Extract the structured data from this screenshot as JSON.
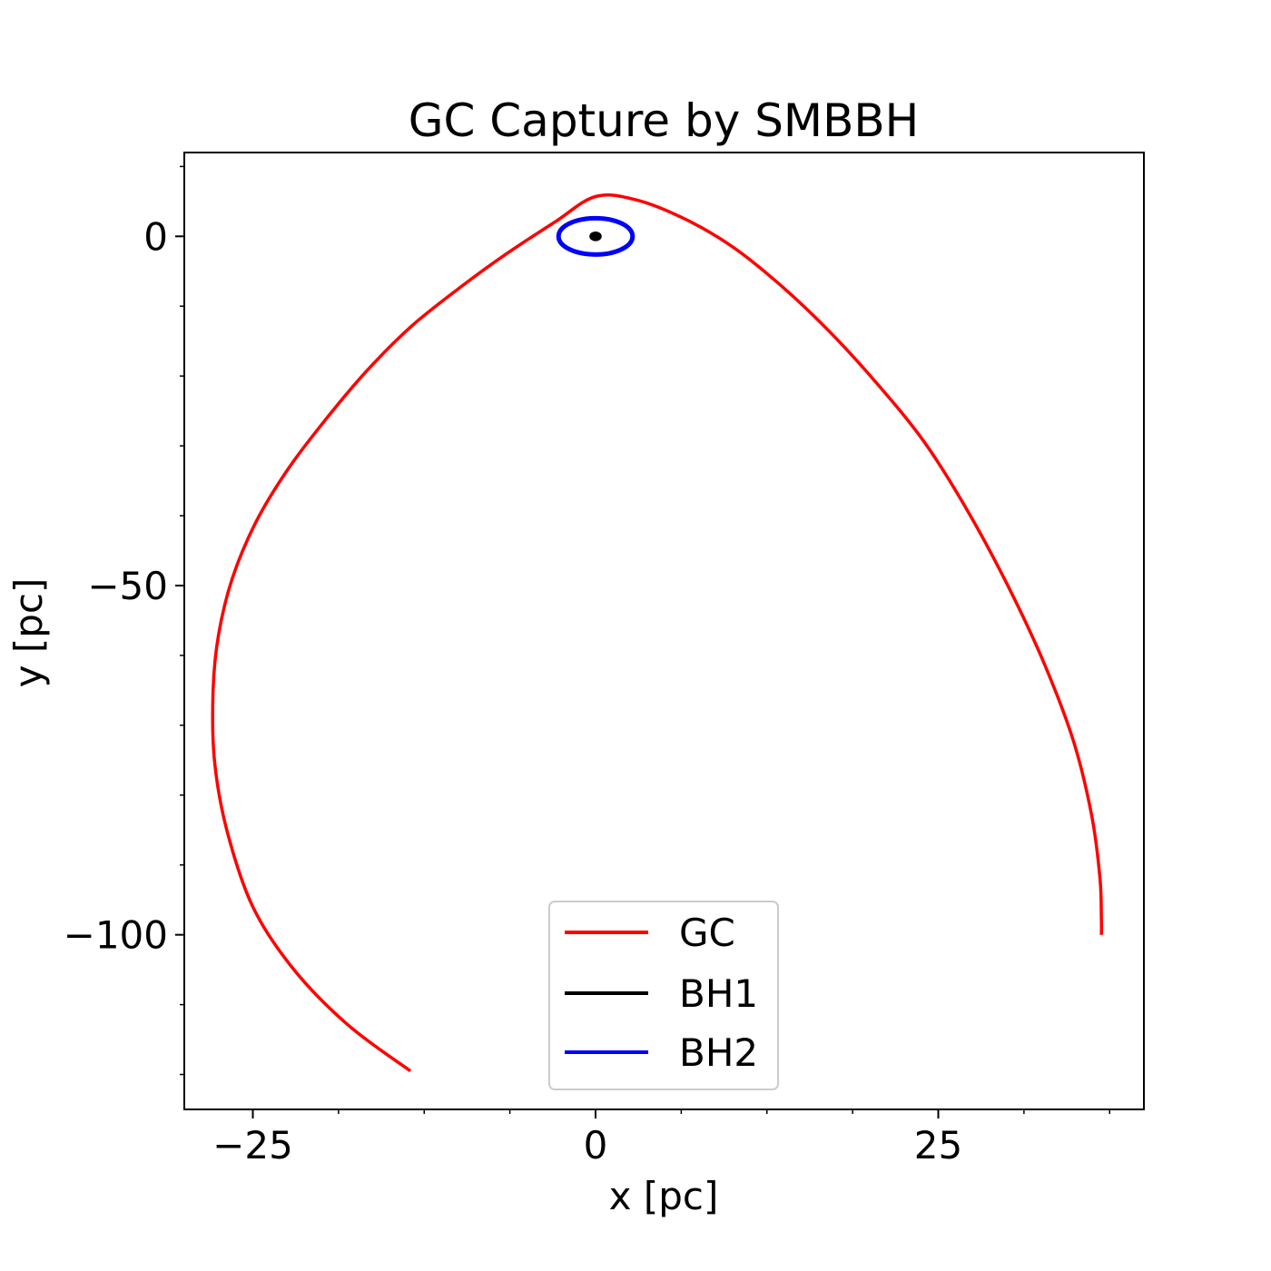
{
  "chart_data": {
    "type": "line",
    "title": "GC Capture by SMBBH",
    "xlabel": "x [pc]",
    "ylabel": "y [pc]",
    "xlim": [
      -30,
      40
    ],
    "ylim": [
      -125,
      12
    ],
    "x_ticks": [
      {
        "value": -25,
        "label": "−25"
      },
      {
        "value": 0,
        "label": "0"
      },
      {
        "value": 25,
        "label": "25"
      }
    ],
    "y_ticks": [
      {
        "value": 0,
        "label": "0"
      },
      {
        "value": -50,
        "label": "−50"
      },
      {
        "value": -100,
        "label": "−100"
      }
    ],
    "x_minor_ticks": [
      -18.75,
      -12.5,
      -6.25,
      6.25,
      12.5,
      18.75,
      31.25,
      37.5
    ],
    "y_minor_ticks": [
      10,
      -10,
      -20,
      -30,
      -40,
      -60,
      -70,
      -80,
      -90,
      -110,
      -120
    ],
    "grid": false,
    "legend_position": "lower center",
    "series": [
      {
        "name": "GC",
        "color": "#ff0000",
        "x": [
          -13.5,
          -18,
          -22,
          -25,
          -26.9,
          -27.8,
          -27.9,
          -27.5,
          -26.5,
          -24.8,
          -22.5,
          -19.8,
          -16.8,
          -13.5,
          -10,
          -6.5,
          -3,
          0,
          3,
          6.5,
          10,
          13.5,
          17,
          20.5,
          24,
          27.2,
          30.2,
          32.8,
          34.9,
          36.2,
          36.8,
          36.9,
          36.9
        ],
        "y": [
          -119.5,
          -113,
          -105,
          -96,
          -85,
          -75,
          -65,
          -57,
          -49,
          -41,
          -33.5,
          -26.5,
          -19.5,
          -13,
          -7.5,
          -2.5,
          2,
          5.7,
          5.2,
          2.5,
          -1.5,
          -7,
          -13.5,
          -21,
          -29.5,
          -39.5,
          -50.5,
          -61.5,
          -72.5,
          -83,
          -92,
          -98,
          -100
        ]
      },
      {
        "name": "BH1",
        "color": "#000000",
        "shape": "ellipse",
        "cx": 0,
        "cy": 0,
        "rx": 0.35,
        "ry": 0.5
      },
      {
        "name": "BH2",
        "color": "#0000ff",
        "shape": "ellipse",
        "cx": 0,
        "cy": 0,
        "rx": 2.7,
        "ry": 2.6
      }
    ]
  }
}
